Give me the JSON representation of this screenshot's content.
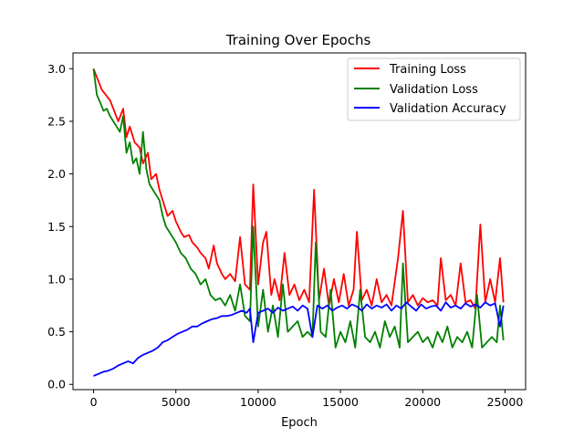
{
  "chart_data": {
    "type": "line",
    "title": "Training Over Epochs",
    "xlabel": "Epoch",
    "ylabel": "",
    "xlim": [
      -1250,
      26250
    ],
    "ylim": [
      -0.05,
      3.15
    ],
    "xticks": [
      0,
      5000,
      10000,
      15000,
      20000,
      25000
    ],
    "yticks": [
      0.0,
      0.5,
      1.0,
      1.5,
      2.0,
      2.5,
      3.0
    ],
    "xtick_labels": [
      "0",
      "5000",
      "10000",
      "15000",
      "20000",
      "25000"
    ],
    "ytick_labels": [
      "0.0",
      "0.5",
      "1.0",
      "1.5",
      "2.0",
      "2.5",
      "3.0"
    ],
    "grid": false,
    "legend_position": "upper-right",
    "series": [
      {
        "name": "Training Loss",
        "color": "#ff0000",
        "x": [
          0,
          500,
          1000,
          1500,
          1800,
          2000,
          2200,
          2500,
          2800,
          3000,
          3300,
          3500,
          3800,
          4000,
          4300,
          4500,
          4800,
          5000,
          5300,
          5500,
          5800,
          6000,
          6300,
          6500,
          6800,
          7000,
          7300,
          7500,
          7800,
          8000,
          8300,
          8600,
          8900,
          9200,
          9500,
          9700,
          10000,
          10300,
          10500,
          10800,
          11000,
          11300,
          11600,
          11900,
          12200,
          12500,
          12800,
          13100,
          13400,
          13700,
          14000,
          14300,
          14600,
          14900,
          15200,
          15500,
          15800,
          16000,
          16300,
          16600,
          16900,
          17200,
          17500,
          17800,
          18100,
          18500,
          18800,
          19100,
          19400,
          19700,
          20000,
          20300,
          20600,
          20900,
          21100,
          21400,
          21700,
          22000,
          22300,
          22600,
          22900,
          23200,
          23500,
          23800,
          24100,
          24400,
          24700,
          24900
        ],
        "y": [
          3.0,
          2.8,
          2.7,
          2.5,
          2.62,
          2.35,
          2.45,
          2.3,
          2.25,
          2.1,
          2.2,
          1.95,
          2.0,
          1.85,
          1.7,
          1.6,
          1.65,
          1.55,
          1.45,
          1.4,
          1.42,
          1.35,
          1.3,
          1.25,
          1.2,
          1.1,
          1.32,
          1.15,
          1.05,
          1.0,
          1.05,
          0.98,
          1.4,
          0.95,
          0.9,
          1.9,
          0.95,
          1.35,
          1.45,
          0.85,
          1.0,
          0.8,
          1.25,
          0.85,
          0.95,
          0.8,
          0.9,
          0.78,
          1.85,
          0.8,
          1.1,
          0.75,
          1.0,
          0.78,
          1.05,
          0.75,
          0.9,
          1.45,
          0.8,
          0.9,
          0.75,
          1.0,
          0.78,
          0.85,
          0.75,
          1.2,
          1.65,
          0.78,
          0.85,
          0.75,
          0.82,
          0.78,
          0.8,
          0.75,
          1.2,
          0.8,
          0.85,
          0.75,
          1.15,
          0.78,
          0.8,
          0.72,
          1.52,
          0.78,
          1.0,
          0.78,
          1.2,
          0.78
        ]
      },
      {
        "name": "Validation Loss",
        "color": "#008000",
        "x": [
          0,
          200,
          400,
          600,
          800,
          1000,
          1200,
          1400,
          1600,
          1800,
          2000,
          2200,
          2400,
          2600,
          2800,
          3000,
          3200,
          3400,
          3600,
          3800,
          4000,
          4200,
          4400,
          4600,
          4800,
          5000,
          5300,
          5600,
          5900,
          6200,
          6500,
          6800,
          7100,
          7400,
          7700,
          8000,
          8300,
          8600,
          8900,
          9200,
          9500,
          9700,
          10000,
          10300,
          10600,
          10900,
          11200,
          11500,
          11800,
          12100,
          12400,
          12700,
          13000,
          13300,
          13500,
          13800,
          14100,
          14400,
          14700,
          15000,
          15300,
          15600,
          15900,
          16200,
          16500,
          16800,
          17100,
          17400,
          17700,
          18000,
          18300,
          18600,
          18800,
          19100,
          19400,
          19700,
          20000,
          20300,
          20600,
          20900,
          21200,
          21500,
          21800,
          22100,
          22400,
          22700,
          23000,
          23300,
          23600,
          23900,
          24200,
          24500,
          24700,
          24900
        ],
        "y": [
          3.0,
          2.75,
          2.68,
          2.6,
          2.62,
          2.55,
          2.5,
          2.45,
          2.4,
          2.55,
          2.2,
          2.3,
          2.1,
          2.15,
          2.0,
          2.4,
          2.05,
          1.9,
          1.85,
          1.8,
          1.75,
          1.6,
          1.5,
          1.45,
          1.4,
          1.35,
          1.25,
          1.2,
          1.1,
          1.05,
          0.95,
          1.0,
          0.85,
          0.8,
          0.82,
          0.75,
          0.85,
          0.7,
          0.95,
          0.65,
          0.6,
          1.5,
          0.55,
          0.9,
          0.5,
          0.75,
          0.45,
          0.95,
          0.5,
          0.55,
          0.6,
          0.45,
          0.5,
          0.45,
          1.35,
          0.5,
          0.45,
          0.9,
          0.35,
          0.5,
          0.4,
          0.6,
          0.35,
          0.9,
          0.45,
          0.4,
          0.5,
          0.35,
          0.6,
          0.45,
          0.55,
          0.35,
          1.15,
          0.4,
          0.45,
          0.5,
          0.4,
          0.45,
          0.35,
          0.5,
          0.4,
          0.55,
          0.35,
          0.45,
          0.4,
          0.5,
          0.35,
          0.85,
          0.35,
          0.4,
          0.45,
          0.4,
          0.75,
          0.42
        ]
      },
      {
        "name": "Validation Accuracy",
        "color": "#0000ff",
        "x": [
          0,
          300,
          600,
          900,
          1200,
          1500,
          1800,
          2100,
          2400,
          2700,
          3000,
          3300,
          3600,
          3900,
          4200,
          4500,
          4800,
          5100,
          5400,
          5700,
          6000,
          6300,
          6600,
          6900,
          7200,
          7500,
          7800,
          8100,
          8400,
          8700,
          9000,
          9300,
          9500,
          9700,
          10000,
          10300,
          10600,
          10900,
          11200,
          11500,
          11800,
          12100,
          12400,
          12700,
          13000,
          13300,
          13600,
          13900,
          14200,
          14500,
          14800,
          15100,
          15400,
          15700,
          16000,
          16300,
          16600,
          16900,
          17200,
          17500,
          17800,
          18100,
          18400,
          18700,
          19000,
          19300,
          19600,
          19900,
          20200,
          20500,
          20800,
          21100,
          21400,
          21700,
          22000,
          22300,
          22600,
          22900,
          23200,
          23500,
          23800,
          24100,
          24400,
          24700,
          24900
        ],
        "y": [
          0.08,
          0.1,
          0.12,
          0.13,
          0.15,
          0.18,
          0.2,
          0.22,
          0.2,
          0.25,
          0.28,
          0.3,
          0.32,
          0.35,
          0.4,
          0.42,
          0.45,
          0.48,
          0.5,
          0.52,
          0.55,
          0.55,
          0.58,
          0.6,
          0.62,
          0.63,
          0.65,
          0.65,
          0.66,
          0.68,
          0.7,
          0.68,
          0.72,
          0.4,
          0.68,
          0.7,
          0.72,
          0.68,
          0.73,
          0.7,
          0.72,
          0.74,
          0.7,
          0.75,
          0.72,
          0.45,
          0.75,
          0.72,
          0.75,
          0.7,
          0.73,
          0.75,
          0.72,
          0.76,
          0.74,
          0.7,
          0.76,
          0.72,
          0.75,
          0.73,
          0.76,
          0.7,
          0.75,
          0.72,
          0.78,
          0.74,
          0.7,
          0.76,
          0.72,
          0.74,
          0.75,
          0.7,
          0.78,
          0.73,
          0.75,
          0.72,
          0.77,
          0.74,
          0.76,
          0.73,
          0.78,
          0.75,
          0.77,
          0.55,
          0.75
        ]
      }
    ]
  }
}
